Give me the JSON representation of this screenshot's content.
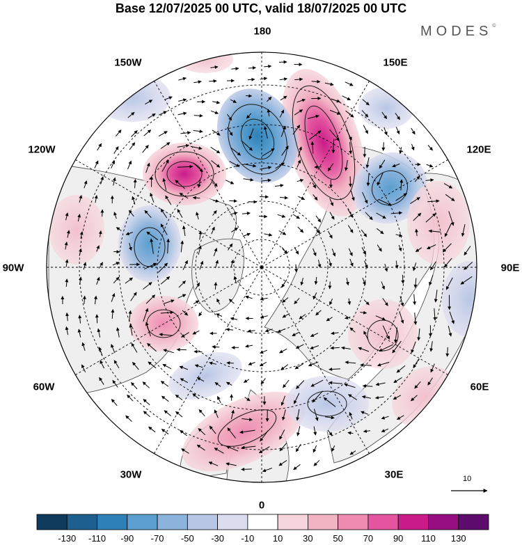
{
  "title": "Base 12/07/2025 00 UTC, valid 18/07/2025 00 UTC",
  "brand": "MODES",
  "brand_mark": "©",
  "longitude_labels": {
    "lon_180": "180",
    "lon_150e": "150E",
    "lon_120e": "120E",
    "lon_90e": "90E",
    "lon_60e": "60E",
    "lon_30e": "30E",
    "lon_0": "0",
    "lon_30w": "30W",
    "lon_60w": "60W",
    "lon_90w": "90W",
    "lon_120w": "120W",
    "lon_150w": "150W"
  },
  "vector_reference": {
    "label": "10"
  },
  "colorbar": {
    "colors": [
      "#0f3a5c",
      "#1d5f8f",
      "#2d80b8",
      "#5a9fcf",
      "#8cb3dc",
      "#b8c6e5",
      "#dcdcef",
      "#ffffff",
      "#f6d6dc",
      "#f2b3c3",
      "#ee8cb2",
      "#e4549f",
      "#c91c88",
      "#960e80",
      "#5e0b6e"
    ],
    "ticks": [
      "-130",
      "-110",
      "-90",
      "-70",
      "-50",
      "-30",
      "-10",
      "10",
      "30",
      "50",
      "70",
      "90",
      "110",
      "130"
    ]
  },
  "map_colors": {
    "land_fill": "#efefef",
    "coastline": "#444444",
    "grid": "#000000"
  }
}
